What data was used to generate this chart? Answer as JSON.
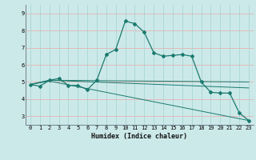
{
  "xlabel": "Humidex (Indice chaleur)",
  "background_color": "#cce9e9",
  "grid_color_vert": "#aad4d4",
  "grid_color_horiz": "#e8b0b0",
  "line_color": "#1a7a6e",
  "xlim": [
    -0.5,
    23.5
  ],
  "ylim": [
    2.5,
    9.5
  ],
  "xticks": [
    0,
    1,
    2,
    3,
    4,
    5,
    6,
    7,
    8,
    9,
    10,
    11,
    12,
    13,
    14,
    15,
    16,
    17,
    18,
    19,
    20,
    21,
    22,
    23
  ],
  "yticks": [
    3,
    4,
    5,
    6,
    7,
    8,
    9
  ],
  "line1_x": [
    0,
    1,
    2,
    3,
    4,
    5,
    6,
    7,
    8,
    9,
    10,
    11,
    12,
    13,
    14,
    15,
    16,
    17,
    18,
    19,
    20,
    21,
    22,
    23
  ],
  "line1_y": [
    4.85,
    4.75,
    5.1,
    5.2,
    4.8,
    4.8,
    4.55,
    5.1,
    6.6,
    6.9,
    8.55,
    8.4,
    7.9,
    6.7,
    6.5,
    6.55,
    6.6,
    6.5,
    5.0,
    4.4,
    4.35,
    4.35,
    3.2,
    2.75
  ],
  "line2_x": [
    0,
    2,
    23
  ],
  "line2_y": [
    4.85,
    5.1,
    5.0
  ],
  "line3_x": [
    0,
    2,
    23
  ],
  "line3_y": [
    4.85,
    5.1,
    4.65
  ],
  "line4_x": [
    0,
    2,
    23
  ],
  "line4_y": [
    4.85,
    5.05,
    2.75
  ],
  "spine_color": "#708090"
}
